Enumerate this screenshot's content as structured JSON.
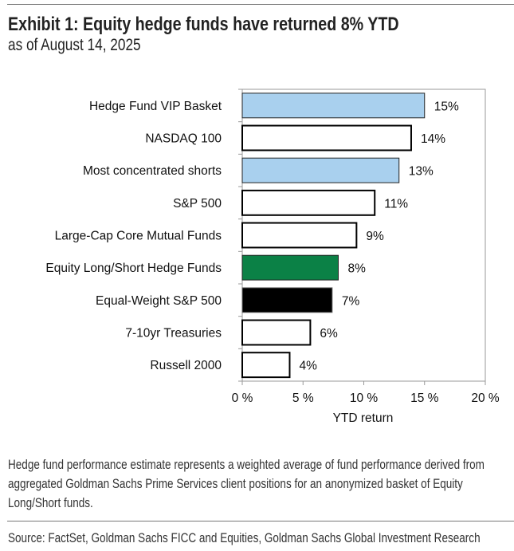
{
  "title": "Exhibit 1: Equity hedge funds have returned 8% YTD",
  "subtitle": "as of August 14, 2025",
  "chart_data": {
    "type": "bar",
    "orientation": "horizontal",
    "categories": [
      "Hedge Fund VIP Basket",
      "NASDAQ 100",
      "Most concentrated shorts",
      "S&P 500",
      "Large-Cap Core Mutual Funds",
      "Equity Long/Short Hedge Funds",
      "Equal-Weight S&P 500",
      "7-10yr Treasuries",
      "Russell 2000"
    ],
    "values": [
      15.0,
      13.9,
      12.9,
      10.9,
      9.4,
      7.9,
      7.4,
      5.6,
      3.9
    ],
    "data_labels": [
      "15%",
      "14%",
      "13%",
      "11%",
      "9%",
      "8%",
      "7%",
      "6%",
      "4%"
    ],
    "bar_fills": [
      "#a9d0ee",
      "#ffffff",
      "#a9d0ee",
      "#ffffff",
      "#ffffff",
      "#0b8146",
      "#000000",
      "#ffffff",
      "#ffffff"
    ],
    "xlabel": "YTD return",
    "xlim": [
      0,
      20
    ],
    "xticks": [
      0,
      5,
      10,
      15,
      20
    ],
    "xtick_labels": [
      "0 %",
      "5 %",
      "10 %",
      "15 %",
      "20 %"
    ],
    "grid": false,
    "legend": "none"
  },
  "note": "Hedge fund performance estimate represents a weighted average of fund performance derived from aggregated Goldman Sachs Prime Services client positions for an anonymized basket of Equity Long/Short funds.",
  "source": "Source: FactSet, Goldman Sachs FICC and Equities, Goldman Sachs Global Investment Research"
}
